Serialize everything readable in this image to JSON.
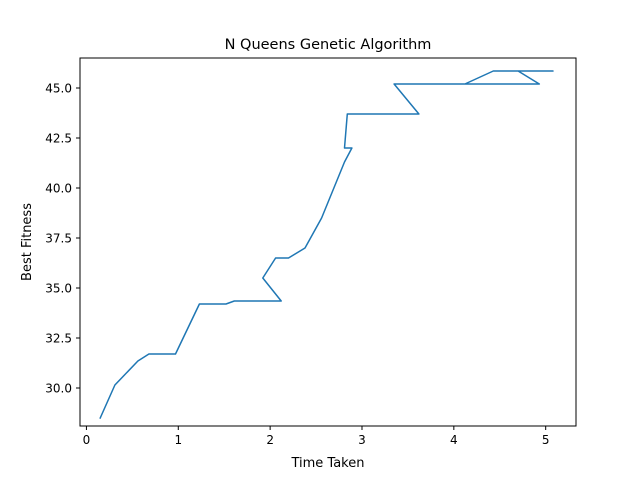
{
  "chart_data": {
    "type": "line",
    "title": "N Queens Genetic Algorithm",
    "xlabel": "Time Taken",
    "ylabel": "Best Fitness",
    "xlim": [
      -0.07,
      5.33
    ],
    "ylim": [
      28.1,
      46.5
    ],
    "xticks": [
      0,
      1,
      2,
      3,
      4,
      5
    ],
    "xtick_labels": [
      "0",
      "1",
      "2",
      "3",
      "4",
      "5"
    ],
    "yticks": [
      30.0,
      32.5,
      35.0,
      37.5,
      40.0,
      42.5,
      45.0
    ],
    "ytick_labels": [
      "30.0",
      "32.5",
      "35.0",
      "37.5",
      "40.0",
      "42.5",
      "45.0"
    ],
    "grid": false,
    "legend": "none",
    "series": [
      {
        "color": "#1f77b4",
        "x": [
          0.15,
          0.31,
          0.56,
          0.68,
          0.97,
          1.23,
          1.52,
          1.61,
          2.12,
          1.92,
          2.06,
          2.2,
          2.38,
          2.56,
          2.81,
          2.89,
          2.81,
          2.84,
          3.54,
          3.62,
          3.35,
          4.12,
          4.43,
          5.08,
          4.7,
          4.93,
          4.0,
          4.9
        ],
        "y": [
          28.5,
          30.15,
          31.35,
          31.7,
          31.7,
          34.2,
          34.2,
          34.35,
          34.35,
          35.5,
          36.5,
          36.5,
          37.0,
          38.5,
          41.3,
          42.0,
          42.0,
          43.7,
          43.7,
          43.7,
          45.2,
          45.2,
          45.85,
          45.85,
          45.85,
          45.2,
          45.2,
          45.2
        ]
      }
    ]
  }
}
